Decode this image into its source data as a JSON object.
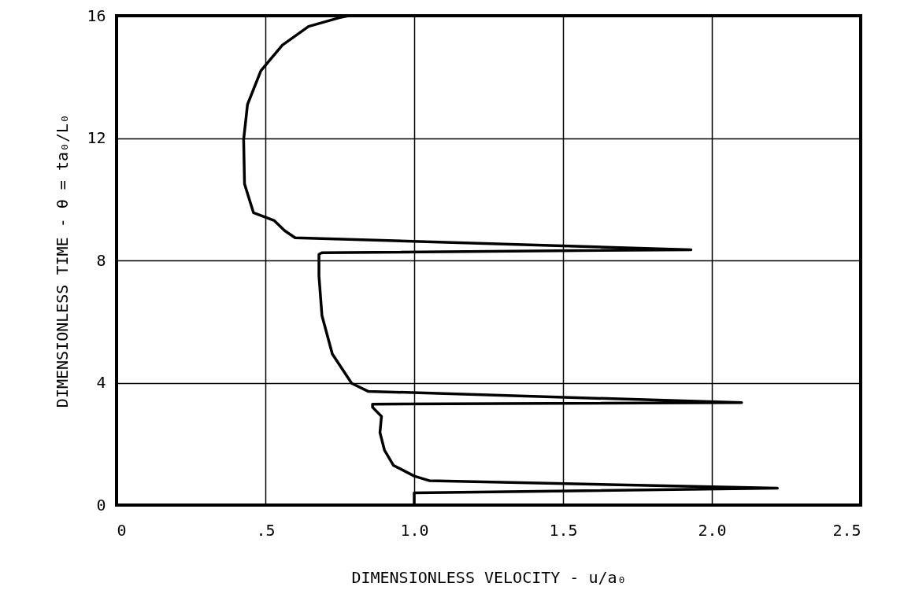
{
  "chart_data": {
    "type": "line",
    "xlabel": "DIMENSIONLESS VELOCITY - u/a₀",
    "ylabel": "DIMENSIONLESS TIME - θ = ta₀/L₀",
    "xlim": [
      0,
      2.5
    ],
    "xticks": [
      0,
      {
        "value": 0.5,
        "label": ".5"
      },
      {
        "value": 1,
        "label": "1.0"
      },
      {
        "value": 1.5,
        "label": "1.5"
      },
      {
        "value": 2,
        "label": "2.0"
      },
      {
        "value": 2.5,
        "label": "2.5"
      }
    ],
    "ylim": [
      0,
      16
    ],
    "yticks": [
      0,
      4,
      8,
      12,
      16
    ],
    "grid": true,
    "line_style": "solid",
    "marker": "none",
    "series": [
      {
        "color": "#000000",
        "x": [
          1.0,
          1.0,
          2.22,
          1.05,
          1.0,
          0.93,
          0.9,
          0.885,
          0.89,
          0.86,
          0.86,
          2.1,
          0.845,
          0.79,
          0.725,
          0.69,
          0.68,
          0.68,
          0.69,
          1.93,
          0.6,
          0.565,
          0.53,
          0.46,
          0.43,
          0.427,
          0.44,
          0.485,
          0.557,
          0.645,
          0.75,
          0.78
        ],
        "values": [
          0,
          0.4,
          0.55,
          0.8,
          0.95,
          1.3,
          1.8,
          2.37,
          2.9,
          3.2,
          3.3,
          3.35,
          3.72,
          3.98,
          4.94,
          6.2,
          7.5,
          8.2,
          8.25,
          8.35,
          8.74,
          8.97,
          9.3,
          9.56,
          10.5,
          11.95,
          13.1,
          14.2,
          15.04,
          15.65,
          15.94,
          16
        ]
      }
    ]
  }
}
